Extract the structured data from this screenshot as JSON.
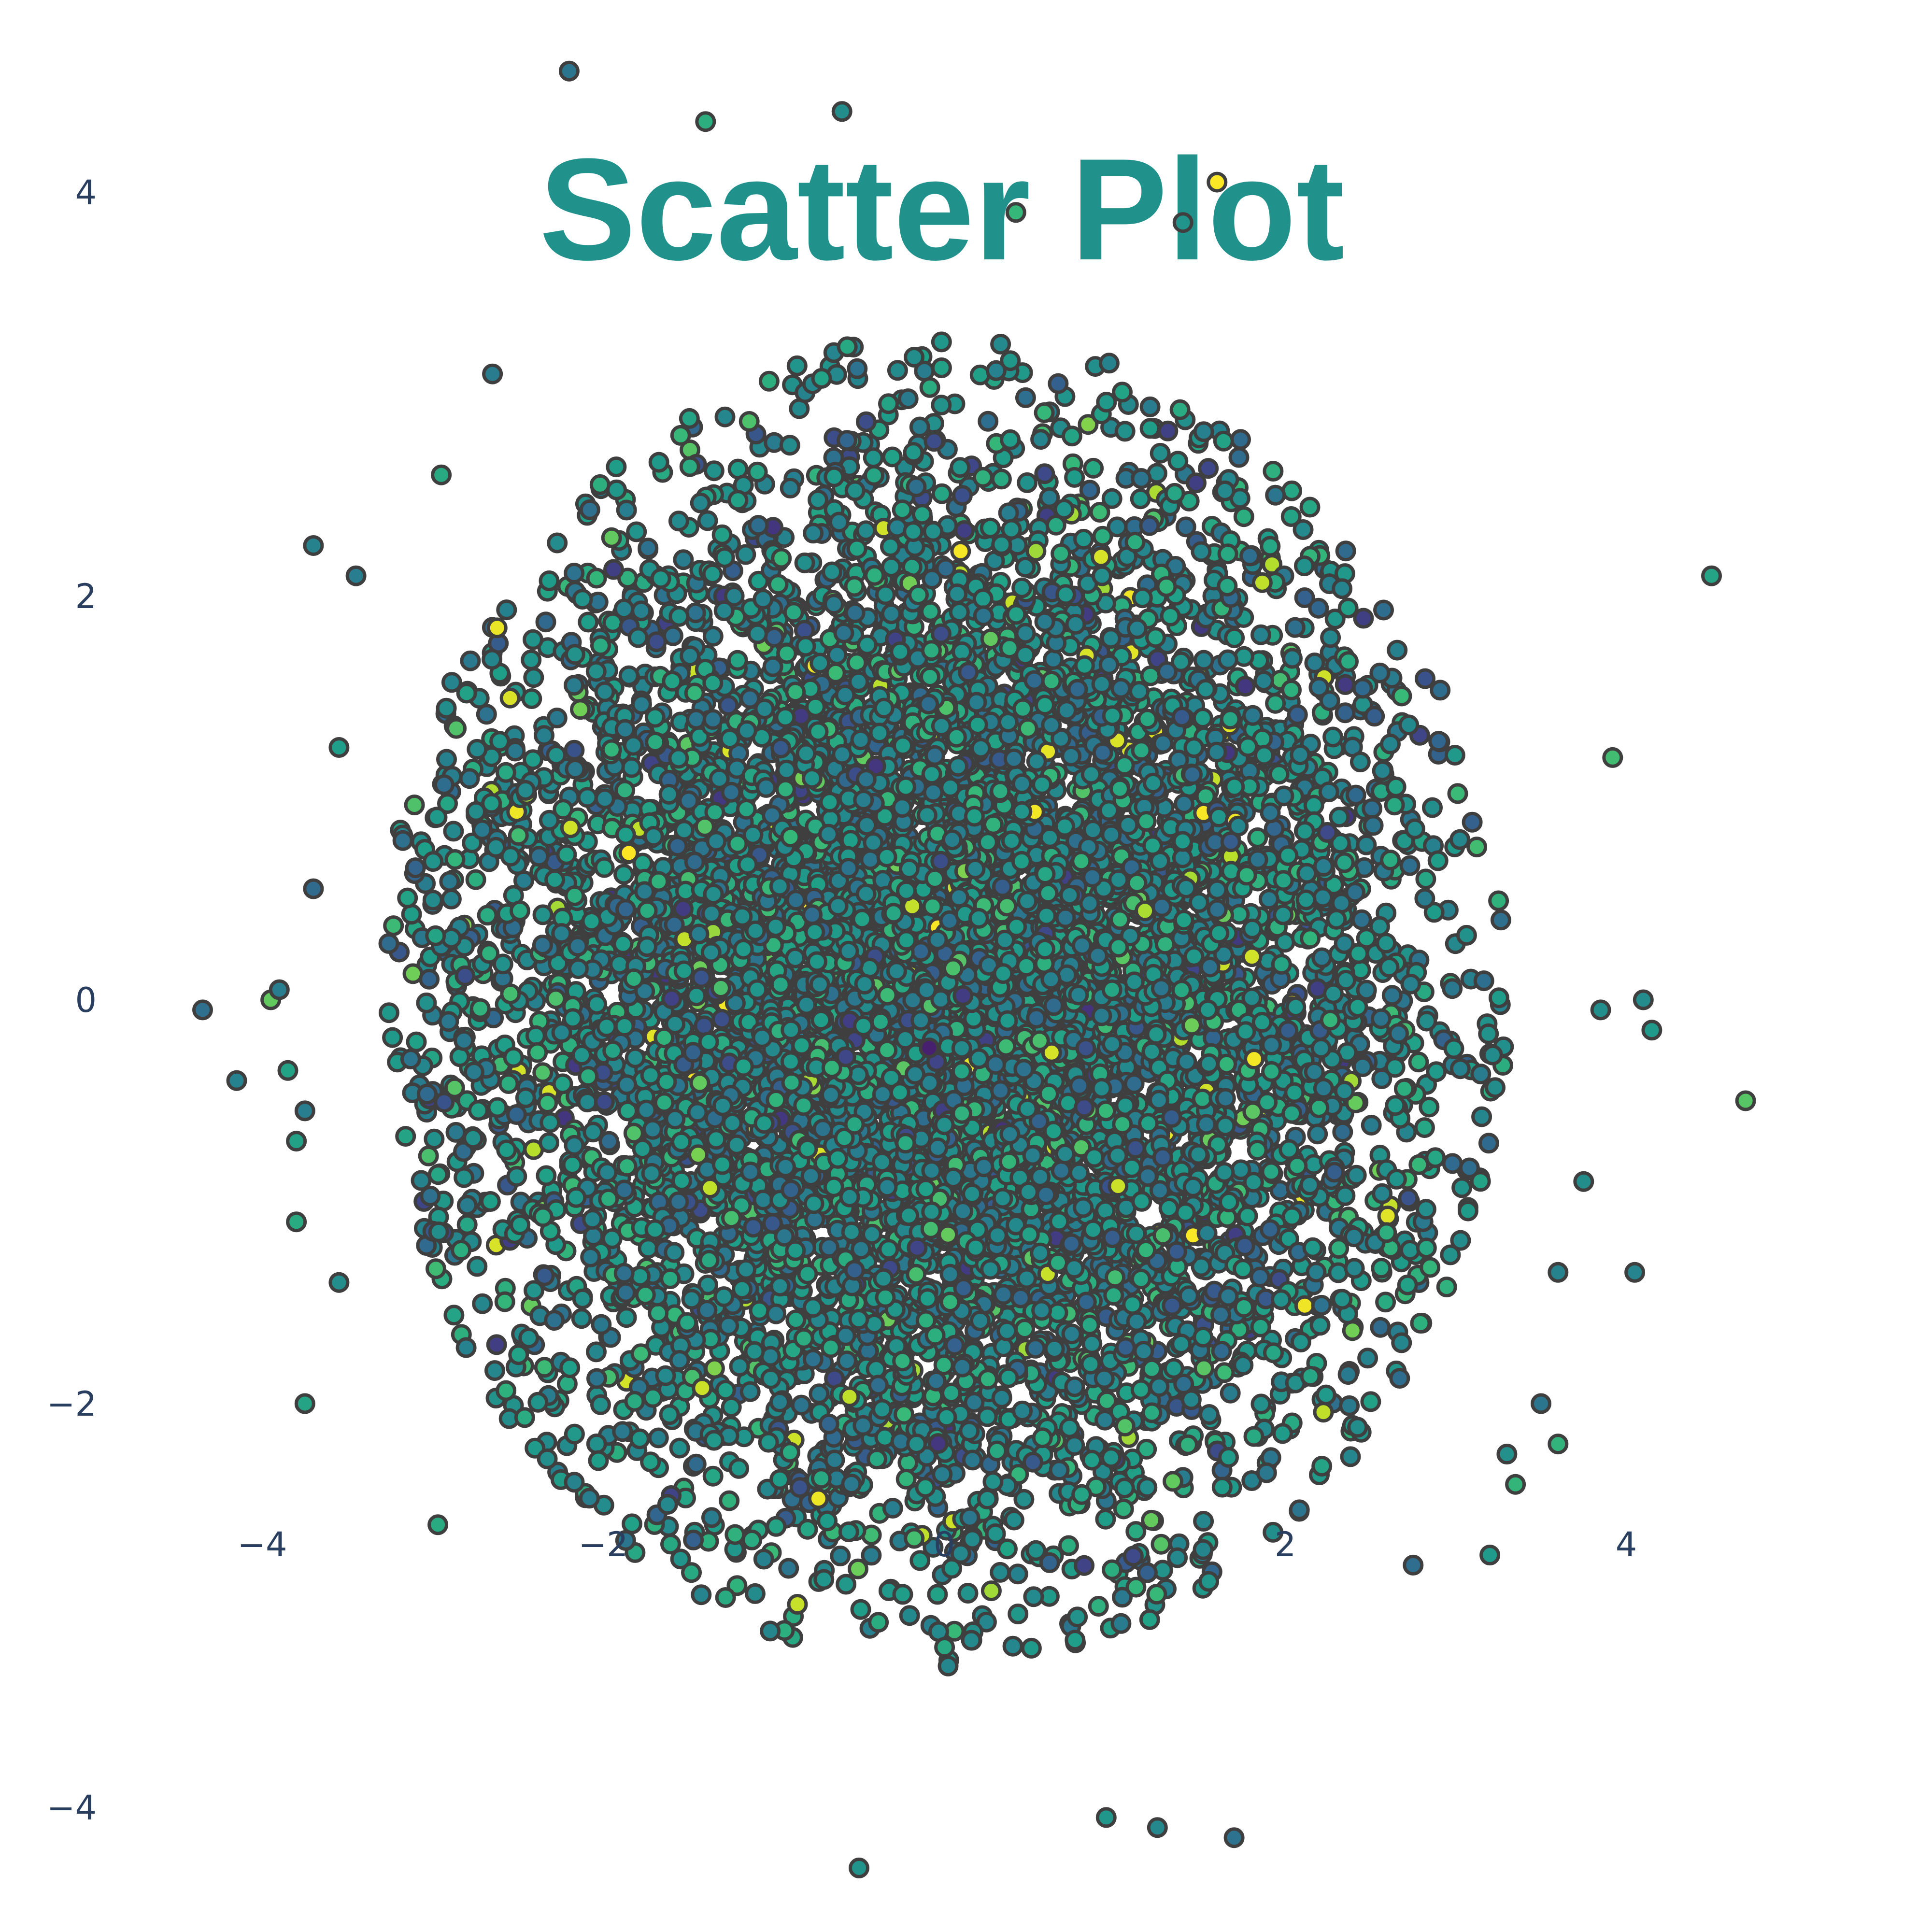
{
  "chart_data": {
    "type": "scatter",
    "title": "Scatter Plot",
    "xlabel": "",
    "ylabel": "",
    "xlim": [
      -4.8,
      5.1
    ],
    "ylim": [
      -5.0,
      5.0
    ],
    "grid": false,
    "legend": "none",
    "x_ticks": [
      "−4",
      "−2",
      "0",
      "2",
      "4"
    ],
    "y_ticks": [
      "4",
      "2",
      "0",
      "−2",
      "−4"
    ],
    "x_tick_values": [
      -4,
      -2,
      0,
      2,
      4
    ],
    "y_tick_values": [
      4,
      2,
      0,
      -2,
      -4
    ],
    "colors": {
      "title": "#21918c",
      "marker_edge": "#3f3f3f",
      "tick_text": "#2a3f5f",
      "colorscale": "viridis"
    },
    "distribution": {
      "description_type": "bivariate normal cloud",
      "n_points": 9000,
      "x_mean": 0.0,
      "x_std": 1.45,
      "y_mean": 0.0,
      "y_std": 1.35,
      "x_range": [
        -3.3,
        3.3
      ],
      "y_range": [
        -3.3,
        3.3
      ]
    },
    "outliers": [
      {
        "x": -4.35,
        "y": -0.05
      },
      {
        "x": -4.15,
        "y": -0.4
      },
      {
        "x": -3.95,
        "y": 0.0
      },
      {
        "x": -3.9,
        "y": 0.05
      },
      {
        "x": -3.85,
        "y": -0.35
      },
      {
        "x": -3.8,
        "y": -0.7
      },
      {
        "x": -3.8,
        "y": -1.1
      },
      {
        "x": -3.75,
        "y": -0.55
      },
      {
        "x": -3.75,
        "y": -2.0
      },
      {
        "x": -3.7,
        "y": 2.25
      },
      {
        "x": -3.7,
        "y": 0.55
      },
      {
        "x": -3.55,
        "y": 1.25
      },
      {
        "x": -3.55,
        "y": -1.4
      },
      {
        "x": -3.45,
        "y": 2.1
      },
      {
        "x": -2.97,
        "y": -2.6
      },
      {
        "x": -2.95,
        "y": 2.6
      },
      {
        "x": -2.65,
        "y": 3.1
      },
      {
        "x": -2.2,
        "y": 4.6
      },
      {
        "x": -1.4,
        "y": 4.35
      },
      {
        "x": -0.6,
        "y": 4.4
      },
      {
        "x": -0.5,
        "y": -4.3
      },
      {
        "x": 0.42,
        "y": 3.9
      },
      {
        "x": 0.95,
        "y": -4.05
      },
      {
        "x": 1.25,
        "y": -4.1
      },
      {
        "x": 1.4,
        "y": 3.85
      },
      {
        "x": 1.6,
        "y": 4.05
      },
      {
        "x": 1.7,
        "y": -4.15
      },
      {
        "x": 2.75,
        "y": -2.8
      },
      {
        "x": 3.2,
        "y": -2.75
      },
      {
        "x": 3.3,
        "y": -2.25
      },
      {
        "x": 3.35,
        "y": -2.4
      },
      {
        "x": 3.5,
        "y": -2.0
      },
      {
        "x": 3.6,
        "y": -2.2
      },
      {
        "x": 3.6,
        "y": -1.35
      },
      {
        "x": 3.75,
        "y": -0.9
      },
      {
        "x": 3.85,
        "y": -0.05
      },
      {
        "x": 3.92,
        "y": 1.2
      },
      {
        "x": 4.05,
        "y": -1.35
      },
      {
        "x": 4.1,
        "y": 0.0
      },
      {
        "x": 4.15,
        "y": -0.15
      },
      {
        "x": 4.5,
        "y": 2.1
      },
      {
        "x": 4.7,
        "y": -0.5
      }
    ]
  }
}
